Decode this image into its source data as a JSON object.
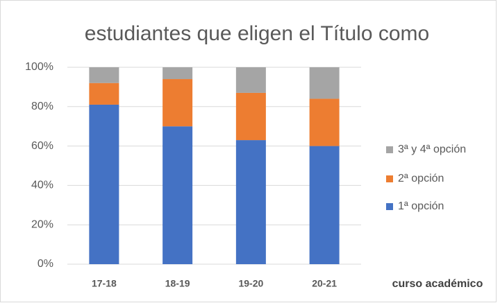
{
  "chart_data": {
    "type": "stacked_bar",
    "title": "estudiantes que eligen el Título como",
    "x_label": "curso académico",
    "categories": [
      "17-18",
      "18-19",
      "19-20",
      "20-21"
    ],
    "series": [
      {
        "name": "1ª opción",
        "color": "#4472c4",
        "values": [
          81,
          70,
          63,
          60
        ]
      },
      {
        "name": "2ª opción",
        "color": "#ed7d31",
        "values": [
          11,
          24,
          24,
          24
        ]
      },
      {
        "name": "3ª y 4ª opción",
        "color": "#a5a5a5",
        "values": [
          8,
          6,
          13,
          16
        ]
      }
    ],
    "ylim": [
      0,
      100
    ],
    "yticks": [
      {
        "value": 0,
        "label": "0%"
      },
      {
        "value": 20,
        "label": "20%"
      },
      {
        "value": 40,
        "label": "40%"
      },
      {
        "value": 60,
        "label": "60%"
      },
      {
        "value": 80,
        "label": "80%"
      },
      {
        "value": 100,
        "label": "100%"
      }
    ],
    "grid": true,
    "legend": "right"
  }
}
